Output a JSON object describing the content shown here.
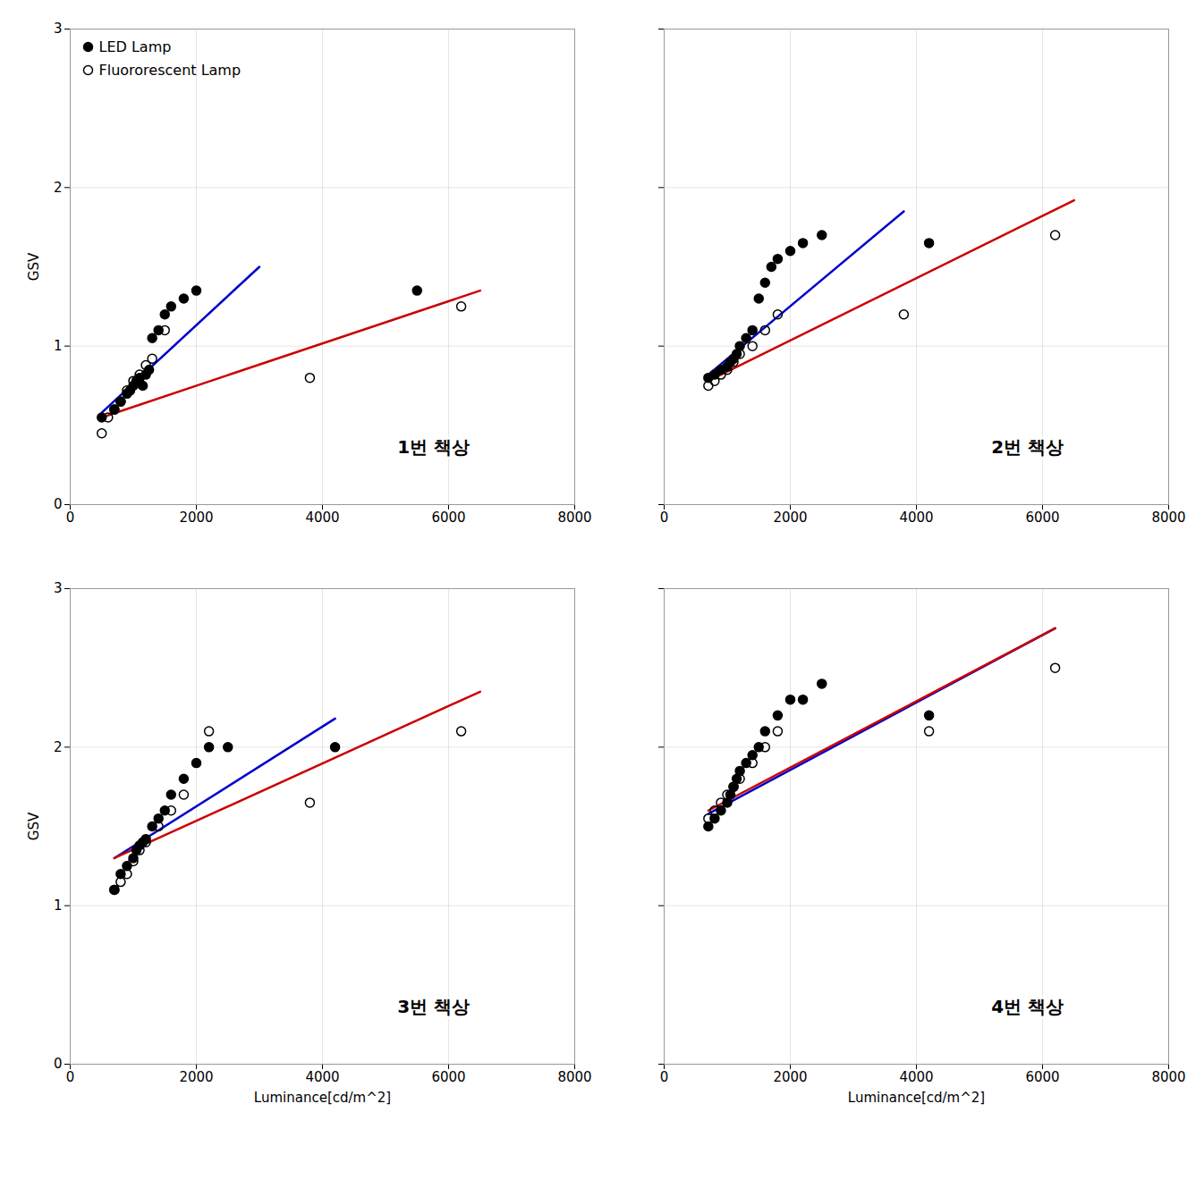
{
  "chart_data": [
    {
      "type": "scatter",
      "ylabel": "GSV",
      "annotations": [
        "1번 책상"
      ],
      "xlim": [
        0,
        8000
      ],
      "xticks": [
        0,
        2000,
        4000,
        6000,
        8000
      ],
      "ylim": [
        0,
        3
      ],
      "yticks": [
        0,
        1,
        2,
        3
      ],
      "grid": true,
      "legend": "upper left",
      "series": [
        {
          "name": "LED Lamp",
          "type": "scatter",
          "marker": "o",
          "color": "#000000",
          "x": [
            500,
            700,
            800,
            900,
            950,
            1000,
            1050,
            1100,
            1150,
            1200,
            1250,
            1300,
            1400,
            1500,
            1600,
            1800,
            2000,
            5500
          ],
          "values": [
            0.55,
            0.6,
            0.65,
            0.7,
            0.72,
            0.75,
            0.78,
            0.8,
            0.75,
            0.82,
            0.85,
            1.05,
            1.1,
            1.2,
            1.25,
            1.3,
            1.35,
            1.35
          ]
        },
        {
          "name": "Fluororescent Lamp",
          "type": "scatter",
          "marker": "open_circle",
          "color": "#000000",
          "x": [
            500,
            600,
            700,
            800,
            900,
            1000,
            1100,
            1200,
            1300,
            1500,
            3800,
            6200
          ],
          "values": [
            0.45,
            0.55,
            0.6,
            0.65,
            0.72,
            0.78,
            0.82,
            0.88,
            0.92,
            1.1,
            0.8,
            1.25
          ]
        },
        {
          "type": "line",
          "color": "#0000CC",
          "x": [
            500,
            3000
          ],
          "values": [
            0.58,
            1.5
          ]
        },
        {
          "type": "line",
          "color": "#CC0000",
          "x": [
            500,
            6500
          ],
          "values": [
            0.55,
            1.35
          ]
        }
      ]
    },
    {
      "type": "scatter",
      "annotations": [
        "2번 책상"
      ],
      "xlim": [
        0,
        8000
      ],
      "xticks": [
        0,
        2000,
        4000,
        6000,
        8000
      ],
      "ylim": [
        0,
        3
      ],
      "yticks": [
        0,
        1,
        2,
        3
      ],
      "grid": true,
      "tick_labels": "x",
      "series": [
        {
          "name": "LED Lamp",
          "type": "scatter",
          "marker": "o",
          "color": "#000000",
          "x": [
            700,
            800,
            900,
            1000,
            1050,
            1100,
            1150,
            1200,
            1300,
            1400,
            1500,
            1600,
            1700,
            1800,
            2000,
            2200,
            2500,
            4200
          ],
          "values": [
            0.8,
            0.82,
            0.85,
            0.87,
            0.9,
            0.92,
            0.95,
            1.0,
            1.05,
            1.1,
            1.3,
            1.4,
            1.5,
            1.55,
            1.6,
            1.65,
            1.7,
            1.65
          ]
        },
        {
          "name": "Fluororescent Lamp",
          "type": "scatter",
          "marker": "open_circle",
          "color": "#000000",
          "x": [
            700,
            800,
            900,
            1000,
            1100,
            1200,
            1400,
            1600,
            1800,
            3800,
            6200
          ],
          "values": [
            0.75,
            0.78,
            0.82,
            0.85,
            0.9,
            0.95,
            1.0,
            1.1,
            1.2,
            1.2,
            1.7
          ]
        },
        {
          "type": "line",
          "color": "#0000CC",
          "x": [
            700,
            3800
          ],
          "values": [
            0.82,
            1.85
          ]
        },
        {
          "type": "line",
          "color": "#CC0000",
          "x": [
            700,
            6500
          ],
          "values": [
            0.78,
            1.92
          ]
        }
      ]
    },
    {
      "type": "scatter",
      "xlabel": "Luminance[cd/m^2]",
      "ylabel": "GSV",
      "annotations": [
        "3번 책상"
      ],
      "xlim": [
        0,
        8000
      ],
      "xticks": [
        0,
        2000,
        4000,
        6000,
        8000
      ],
      "ylim": [
        0,
        3
      ],
      "yticks": [
        0,
        1,
        2,
        3
      ],
      "grid": true,
      "series": [
        {
          "name": "LED Lamp",
          "type": "scatter",
          "marker": "o",
          "color": "#000000",
          "x": [
            700,
            800,
            900,
            1000,
            1050,
            1100,
            1150,
            1200,
            1300,
            1400,
            1500,
            1600,
            1800,
            2000,
            2200,
            2500,
            4200
          ],
          "values": [
            1.1,
            1.2,
            1.25,
            1.3,
            1.35,
            1.38,
            1.4,
            1.42,
            1.5,
            1.55,
            1.6,
            1.7,
            1.8,
            1.9,
            2.0,
            2.0,
            2.0
          ]
        },
        {
          "name": "Fluororescent Lamp",
          "type": "scatter",
          "marker": "open_circle",
          "color": "#000000",
          "x": [
            700,
            800,
            900,
            1000,
            1100,
            1200,
            1400,
            1600,
            1800,
            2200,
            3800,
            6200
          ],
          "values": [
            1.1,
            1.15,
            1.2,
            1.28,
            1.35,
            1.4,
            1.5,
            1.6,
            1.7,
            2.1,
            1.65,
            2.1
          ]
        },
        {
          "type": "line",
          "color": "#0000CC",
          "x": [
            700,
            4200
          ],
          "values": [
            1.3,
            2.18
          ]
        },
        {
          "type": "line",
          "color": "#CC0000",
          "x": [
            700,
            6500
          ],
          "values": [
            1.3,
            2.35
          ]
        }
      ]
    },
    {
      "type": "scatter",
      "xlabel": "Luminance[cd/m^2]",
      "annotations": [
        "4번 책상"
      ],
      "xlim": [
        0,
        8000
      ],
      "xticks": [
        0,
        2000,
        4000,
        6000,
        8000
      ],
      "ylim": [
        0,
        3
      ],
      "yticks": [
        0,
        1,
        2,
        3
      ],
      "grid": true,
      "tick_labels": "x",
      "series": [
        {
          "name": "LED Lamp",
          "type": "scatter",
          "marker": "o",
          "color": "#000000",
          "x": [
            700,
            800,
            900,
            1000,
            1050,
            1100,
            1150,
            1200,
            1300,
            1400,
            1500,
            1600,
            1800,
            2000,
            2200,
            2500,
            4200
          ],
          "values": [
            1.5,
            1.55,
            1.6,
            1.65,
            1.7,
            1.75,
            1.8,
            1.85,
            1.9,
            1.95,
            2.0,
            2.1,
            2.2,
            2.3,
            2.3,
            2.4,
            2.2
          ]
        },
        {
          "name": "Fluororescent Lamp",
          "type": "scatter",
          "marker": "open_circle",
          "color": "#000000",
          "x": [
            700,
            800,
            900,
            1000,
            1100,
            1200,
            1400,
            1600,
            1800,
            4200,
            6200
          ],
          "values": [
            1.55,
            1.6,
            1.65,
            1.7,
            1.75,
            1.8,
            1.9,
            2.0,
            2.1,
            2.1,
            2.5
          ]
        },
        {
          "type": "line",
          "color": "#0000CC",
          "x": [
            700,
            6200
          ],
          "values": [
            1.58,
            2.75
          ]
        },
        {
          "type": "line",
          "color": "#CC0000",
          "x": [
            700,
            6200
          ],
          "values": [
            1.6,
            2.75
          ]
        }
      ]
    }
  ]
}
